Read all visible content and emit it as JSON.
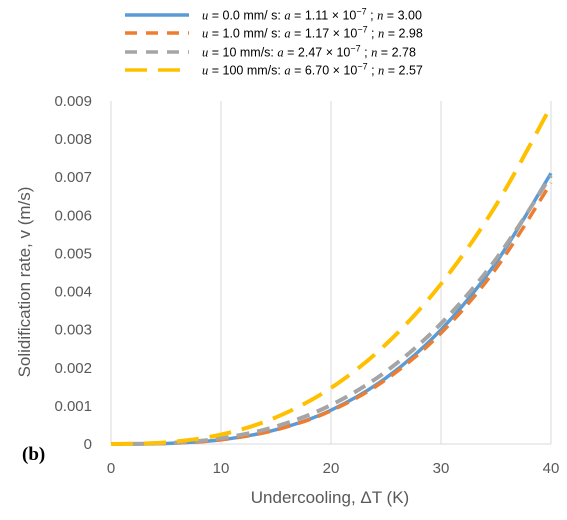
{
  "chart_data": {
    "type": "line",
    "xlabel": "Undercooling, ΔT (K)",
    "ylabel": "Solidification rate, v (m/s)",
    "panel_label": "(b)",
    "xlim": [
      0,
      40
    ],
    "ylim": [
      0,
      0.009
    ],
    "xticks": [
      "0",
      "10",
      "20",
      "30",
      "40"
    ],
    "yticks": [
      "0",
      "0.001",
      "0.002",
      "0.003",
      "0.004",
      "0.005",
      "0.006",
      "0.007",
      "0.008",
      "0.009"
    ],
    "grid": "vertical",
    "legend_position": "top",
    "x": [
      0,
      5,
      10,
      15,
      20,
      25,
      30,
      35,
      40
    ],
    "series": [
      {
        "name": "u = 0.0 mm/ s: a = 1.11 × 10⁻⁷ ; n = 3.00",
        "legend": {
          "u": "0.0 mm/ s:",
          "a": "1.11 × 10",
          "exp": "−7",
          "n": "3.00"
        },
        "color": "#5B9BD5",
        "dash": "solid",
        "values": [
          0,
          1.39e-05,
          0.000111,
          0.000375,
          0.000888,
          0.001734,
          0.002997,
          0.004759,
          0.007104
        ]
      },
      {
        "name": "u = 1.0 mm/ s: a = 1.17 × 10⁻⁷ ; n = 2.98",
        "legend": {
          "u": "1.0 mm/ s:",
          "a": "1.17 × 10",
          "exp": "−7",
          "n": "2.98"
        },
        "color": "#ED7D31",
        "dash": "dash",
        "values": [
          0,
          1.41e-05,
          0.000111,
          0.00037,
          0.000871,
          0.001691,
          0.00291,
          0.004603,
          0.006849
        ]
      },
      {
        "name": "u = 10 mm/s: a = 2.47 × 10⁻⁷ ; n = 2.78",
        "legend": {
          "u": "10 mm/s:",
          "a": "2.47 × 10",
          "exp": "−7",
          "n": "2.78"
        },
        "color": "#A5A5A5",
        "dash": "dash",
        "values": [
          0,
          2.16e-05,
          0.000149,
          0.00046,
          0.001023,
          0.001903,
          0.00316,
          0.004853,
          0.007039
        ]
      },
      {
        "name": "u = 100 mm/s: a = 6.70 × 10⁻⁷ ; n = 2.57",
        "legend": {
          "u": "100 mm/s:",
          "a": "6.70 × 10",
          "exp": "−7",
          "n": "2.57"
        },
        "color": "#FFC000",
        "dash": "longdash",
        "values": [
          0,
          4.2e-05,
          0.000248,
          0.0007,
          0.001471,
          0.002618,
          0.0042,
          0.006266,
          0.008865
        ]
      }
    ]
  }
}
